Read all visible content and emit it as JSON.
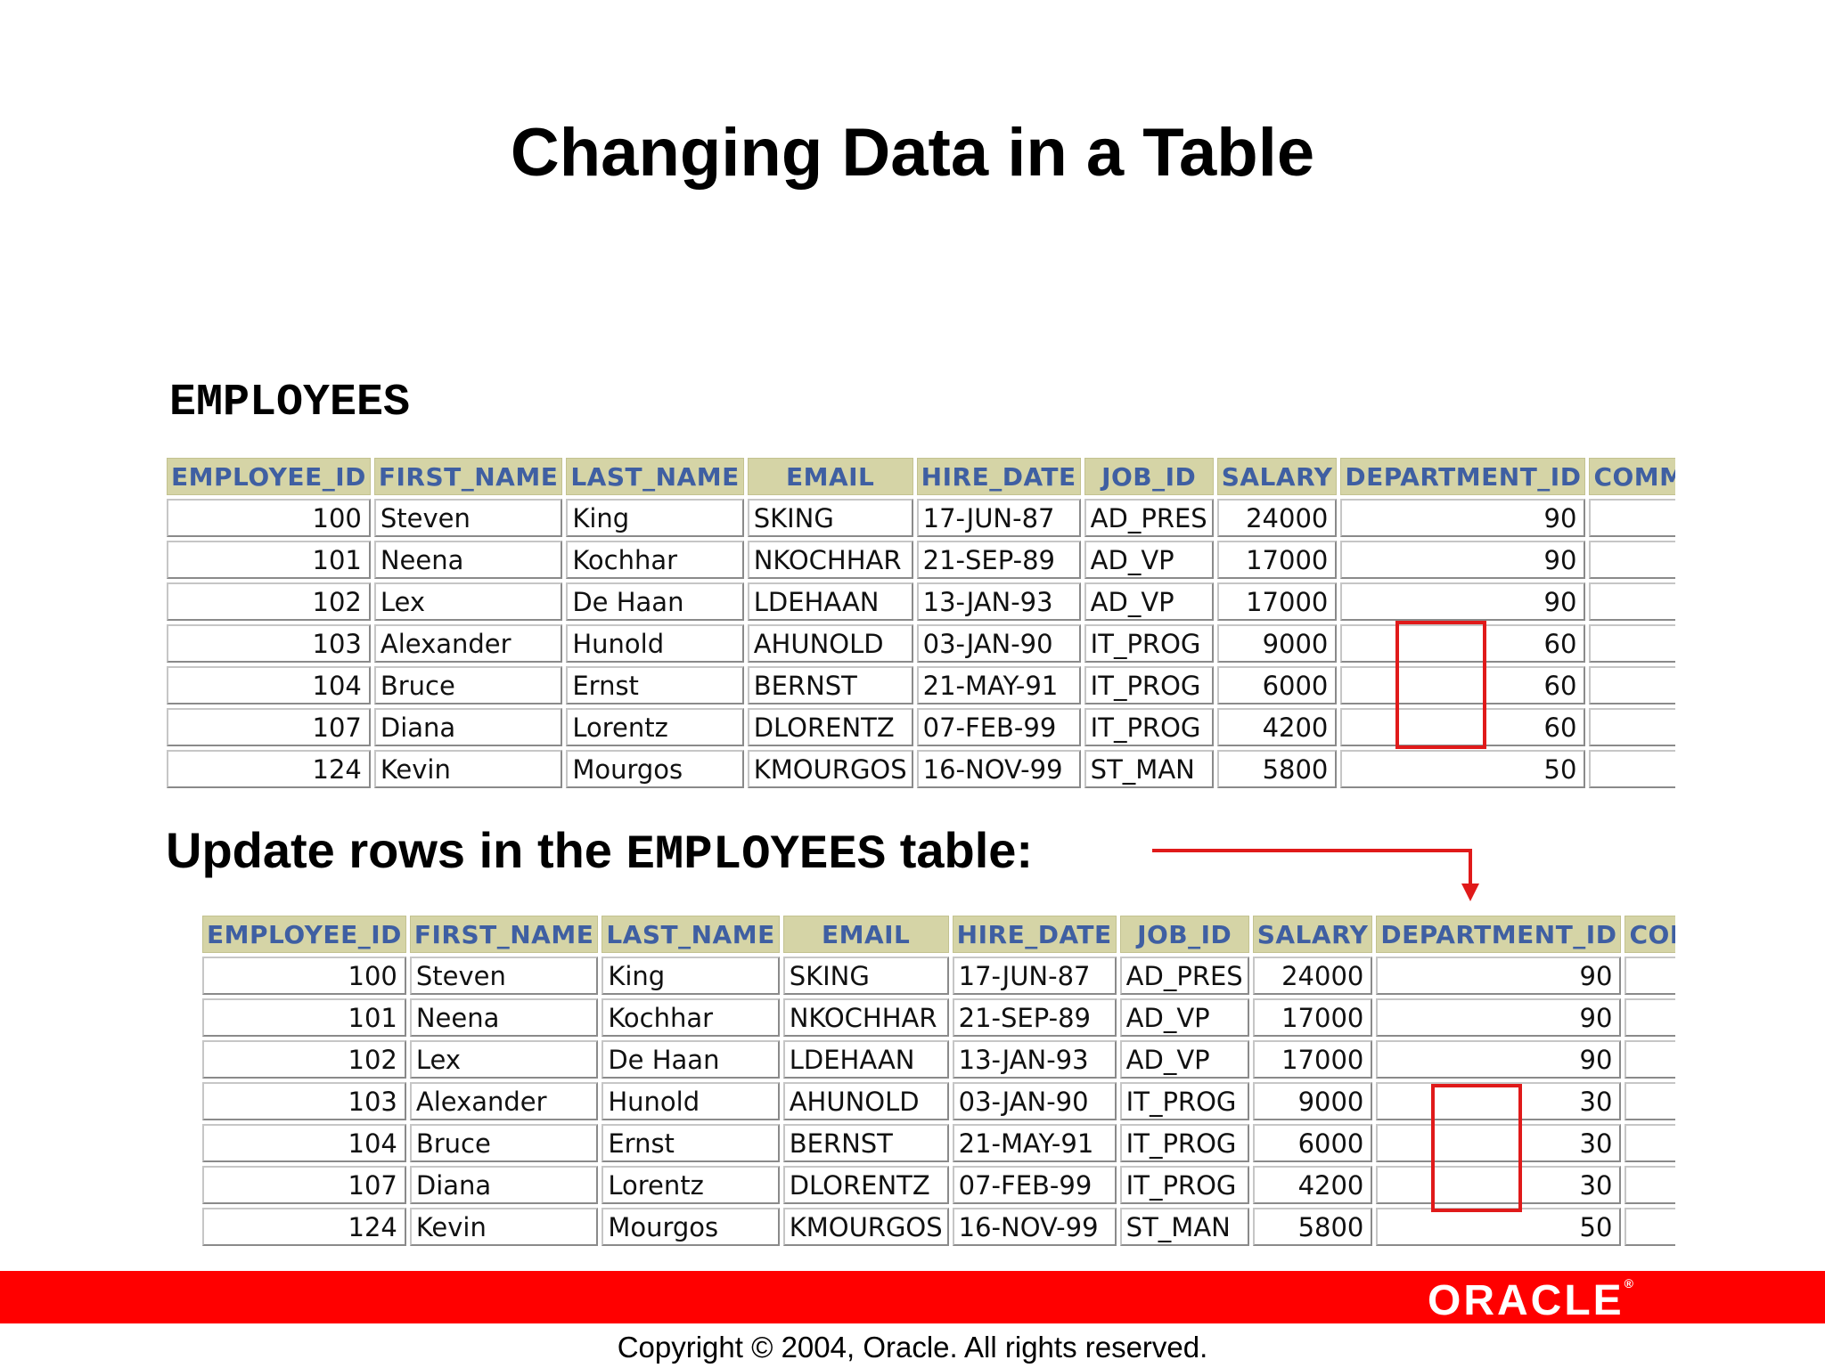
{
  "title": "Changing Data in a Table",
  "table_label": "EMPLOYEES",
  "caption": {
    "before": "Update rows in the ",
    "mono": "EMPLOYEES",
    "after": " table:"
  },
  "columns": [
    "EMPLOYEE_ID",
    "FIRST_NAME",
    "LAST_NAME",
    "EMAIL",
    "HIRE_DATE",
    "JOB_ID",
    "SALARY",
    "DEPARTMENT_ID",
    "COMMISSION_PCT"
  ],
  "columns_after_last": "COMMISSIO",
  "table_before": [
    [
      "100",
      "Steven",
      "King",
      "SKING",
      "17-JUN-87",
      "AD_PRES",
      "24000",
      "90",
      ""
    ],
    [
      "101",
      "Neena",
      "Kochhar",
      "NKOCHHAR",
      "21-SEP-89",
      "AD_VP",
      "17000",
      "90",
      ""
    ],
    [
      "102",
      "Lex",
      "De Haan",
      "LDEHAAN",
      "13-JAN-93",
      "AD_VP",
      "17000",
      "90",
      ""
    ],
    [
      "103",
      "Alexander",
      "Hunold",
      "AHUNOLD",
      "03-JAN-90",
      "IT_PROG",
      "9000",
      "60",
      ""
    ],
    [
      "104",
      "Bruce",
      "Ernst",
      "BERNST",
      "21-MAY-91",
      "IT_PROG",
      "6000",
      "60",
      ""
    ],
    [
      "107",
      "Diana",
      "Lorentz",
      "DLORENTZ",
      "07-FEB-99",
      "IT_PROG",
      "4200",
      "60",
      ""
    ],
    [
      "124",
      "Kevin",
      "Mourgos",
      "KMOURGOS",
      "16-NOV-99",
      "ST_MAN",
      "5800",
      "50",
      ""
    ]
  ],
  "table_after": [
    [
      "100",
      "Steven",
      "King",
      "SKING",
      "17-JUN-87",
      "AD_PRES",
      "24000",
      "90",
      ""
    ],
    [
      "101",
      "Neena",
      "Kochhar",
      "NKOCHHAR",
      "21-SEP-89",
      "AD_VP",
      "17000",
      "90",
      ""
    ],
    [
      "102",
      "Lex",
      "De Haan",
      "LDEHAAN",
      "13-JAN-93",
      "AD_VP",
      "17000",
      "90",
      ""
    ],
    [
      "103",
      "Alexander",
      "Hunold",
      "AHUNOLD",
      "03-JAN-90",
      "IT_PROG",
      "9000",
      "30",
      ""
    ],
    [
      "104",
      "Bruce",
      "Ernst",
      "BERNST",
      "21-MAY-91",
      "IT_PROG",
      "6000",
      "30",
      ""
    ],
    [
      "107",
      "Diana",
      "Lorentz",
      "DLORENTZ",
      "07-FEB-99",
      "IT_PROG",
      "4200",
      "30",
      ""
    ],
    [
      "124",
      "Kevin",
      "Mourgos",
      "KMOURGOS",
      "16-NOV-99",
      "ST_MAN",
      "5800",
      "50",
      ""
    ]
  ],
  "numeric_columns": [
    0,
    6,
    7
  ],
  "colors": {
    "header_bg": "#d5d4a6",
    "header_text": "#3f5fa2",
    "highlight": "#e01a1a",
    "footer": "#ff0000"
  },
  "logo": "ORACLE",
  "copyright": "Copyright © 2004, Oracle.  All rights reserved."
}
